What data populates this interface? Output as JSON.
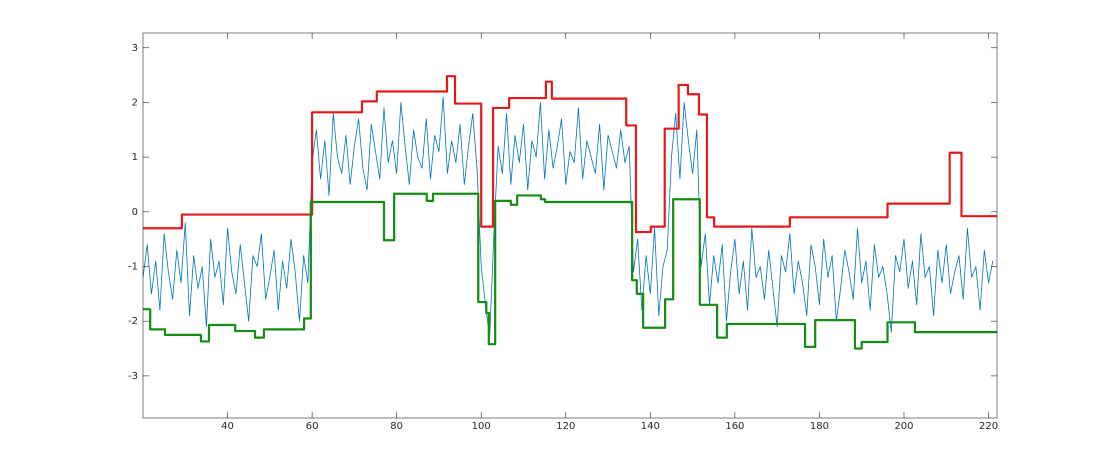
{
  "chart_data": {
    "type": "line",
    "xlim": [
      20,
      222
    ],
    "ylim": [
      -3.77,
      3.27
    ],
    "xticks": [
      40,
      60,
      80,
      100,
      120,
      140,
      160,
      180,
      200,
      220
    ],
    "yticks": [
      -3,
      -2,
      -1,
      0,
      1,
      2,
      3
    ],
    "grid": false,
    "series": [
      {
        "color": "#0072bd",
        "linewidth": 0.8,
        "drawstyle": "default",
        "x": [
          20,
          21,
          22,
          23,
          24,
          25,
          26,
          27,
          28,
          29,
          30,
          31,
          32,
          33,
          34,
          35,
          36,
          37,
          38,
          39,
          40,
          41,
          42,
          43,
          44,
          45,
          46,
          47,
          48,
          49,
          50,
          51,
          52,
          53,
          54,
          55,
          56,
          57,
          58,
          59,
          60,
          61,
          62,
          63,
          64,
          65,
          66,
          67,
          68,
          69,
          70,
          71,
          72,
          73,
          74,
          75,
          76,
          77,
          78,
          79,
          80,
          81,
          82,
          83,
          84,
          85,
          86,
          87,
          88,
          89,
          90,
          91,
          92,
          93,
          94,
          95,
          96,
          97,
          98,
          99,
          100,
          101,
          102,
          103,
          104,
          105,
          106,
          107,
          108,
          109,
          110,
          111,
          112,
          113,
          114,
          115,
          116,
          117,
          118,
          119,
          120,
          121,
          122,
          123,
          124,
          125,
          126,
          127,
          128,
          129,
          130,
          131,
          132,
          133,
          134,
          135,
          136,
          137,
          138,
          139,
          140,
          141,
          142,
          143,
          144,
          145,
          146,
          147,
          148,
          149,
          150,
          151,
          152,
          153,
          154,
          155,
          156,
          157,
          158,
          159,
          160,
          161,
          162,
          163,
          164,
          165,
          166,
          167,
          168,
          169,
          170,
          171,
          172,
          173,
          174,
          175,
          176,
          177,
          178,
          179,
          180,
          181,
          182,
          183,
          184,
          185,
          186,
          187,
          188,
          189,
          190,
          191,
          192,
          193,
          194,
          195,
          196,
          197,
          198,
          199,
          200,
          201,
          202,
          203,
          204,
          205,
          206,
          207,
          208,
          209,
          210,
          211,
          212,
          213,
          214,
          215,
          216,
          217,
          218,
          219,
          220,
          221
        ],
        "values": [
          -1.2,
          -0.6,
          -1.5,
          -0.9,
          -1.8,
          -0.4,
          -1.1,
          -1.6,
          -0.7,
          -1.3,
          -0.2,
          -1.9,
          -0.8,
          -1.4,
          -1.0,
          -2.1,
          -0.5,
          -1.2,
          -0.9,
          -1.7,
          -0.3,
          -1.1,
          -1.5,
          -0.6,
          -1.3,
          -2.0,
          -0.8,
          -1.0,
          -0.4,
          -1.6,
          -1.2,
          -0.7,
          -1.8,
          -0.9,
          -1.4,
          -0.5,
          -1.1,
          -2.0,
          -0.8,
          -1.3,
          0.9,
          1.5,
          0.6,
          1.3,
          0.3,
          1.8,
          1.0,
          0.7,
          1.4,
          0.5,
          1.2,
          1.7,
          0.8,
          0.4,
          1.6,
          1.1,
          0.6,
          1.9,
          0.9,
          1.3,
          0.7,
          2.0,
          1.2,
          0.5,
          1.5,
          1.0,
          0.8,
          1.7,
          0.6,
          1.4,
          1.1,
          2.1,
          0.7,
          1.3,
          0.9,
          1.6,
          0.5,
          1.2,
          1.8,
          0.8,
          -1.0,
          -1.7,
          -2.3,
          -0.4,
          1.2,
          0.7,
          1.8,
          0.5,
          1.4,
          0.9,
          1.6,
          0.4,
          1.3,
          1.0,
          2.0,
          0.6,
          1.5,
          0.8,
          1.2,
          1.7,
          0.5,
          1.1,
          0.9,
          1.9,
          0.6,
          1.3,
          1.0,
          0.7,
          1.6,
          0.4,
          1.4,
          1.1,
          0.8,
          1.5,
          0.9,
          1.2,
          -1.1,
          -0.5,
          -1.8,
          -0.8,
          -1.5,
          -0.3,
          -1.9,
          -1.0,
          -0.7,
          1.0,
          1.8,
          0.6,
          2.0,
          1.3,
          0.7,
          1.5,
          -1.0,
          -0.4,
          -1.7,
          -0.8,
          -1.3,
          -0.6,
          -2.0,
          -1.1,
          -0.5,
          -1.5,
          -0.9,
          -1.8,
          -0.3,
          -1.2,
          -1.0,
          -1.6,
          -0.7,
          -1.4,
          -2.1,
          -0.8,
          -1.1,
          -0.4,
          -1.5,
          -0.9,
          -1.3,
          -1.9,
          -0.6,
          -1.0,
          -1.7,
          -0.5,
          -1.2,
          -0.8,
          -2.0,
          -1.4,
          -0.7,
          -1.1,
          -1.6,
          -0.3,
          -1.3,
          -0.9,
          -1.8,
          -0.6,
          -1.2,
          -1.0,
          -1.5,
          -2.2,
          -0.8,
          -1.1,
          -0.5,
          -1.4,
          -0.9,
          -1.7,
          -0.4,
          -1.2,
          -1.0,
          -1.9,
          -0.7,
          -1.3,
          -0.6,
          -1.5,
          -1.1,
          -0.8,
          -1.6,
          -0.3,
          -1.2,
          -1.0,
          -1.8,
          -0.7,
          -1.3,
          -0.9
        ]
      },
      {
        "color": "#e31a1c",
        "linewidth": 2.2,
        "drawstyle": "steps-post",
        "x": [
          20,
          29.2,
          60,
          71.8,
          75.3,
          91.9,
          93.8,
          100,
          102.8,
          106.6,
          115.3,
          116.7,
          134.3,
          136.6,
          140.1,
          143.4,
          146.7,
          148.9,
          151.5,
          153.4,
          155.1,
          173,
          196.1,
          210.8,
          213.6,
          222
        ],
        "values": [
          -0.3,
          -0.05,
          1.82,
          2.02,
          2.2,
          2.48,
          1.98,
          -0.27,
          1.9,
          2.08,
          2.38,
          2.07,
          1.58,
          -0.37,
          -0.27,
          1.52,
          2.32,
          2.15,
          1.78,
          -0.1,
          -0.27,
          -0.1,
          0.15,
          1.08,
          -0.08,
          -0.08
        ]
      },
      {
        "color": "#138d13",
        "linewidth": 2.2,
        "drawstyle": "steps-post",
        "x": [
          20,
          21.7,
          25.2,
          33.7,
          35.6,
          41.8,
          46.5,
          48.6,
          58.1,
          59.7,
          77,
          79.4,
          87.1,
          88.6,
          99.3,
          101.2,
          101.8,
          103.3,
          107,
          108.5,
          114.1,
          115.1,
          135.7,
          136.8,
          138.3,
          143.5,
          145.4,
          151.7,
          155.8,
          158.1,
          176.6,
          179,
          188.4,
          190,
          196.1,
          202.6,
          222
        ],
        "values": [
          -1.78,
          -2.15,
          -2.25,
          -2.37,
          -2.07,
          -2.18,
          -2.3,
          -2.15,
          -1.95,
          0.18,
          -0.52,
          0.33,
          0.2,
          0.33,
          -1.65,
          -1.85,
          -2.42,
          0.2,
          0.13,
          0.3,
          0.23,
          0.18,
          -1.25,
          -1.5,
          -2.12,
          -1.6,
          0.23,
          -1.7,
          -2.3,
          -2.05,
          -2.47,
          -1.98,
          -2.5,
          -2.38,
          -2.02,
          -2.2,
          -2.2
        ]
      }
    ]
  }
}
